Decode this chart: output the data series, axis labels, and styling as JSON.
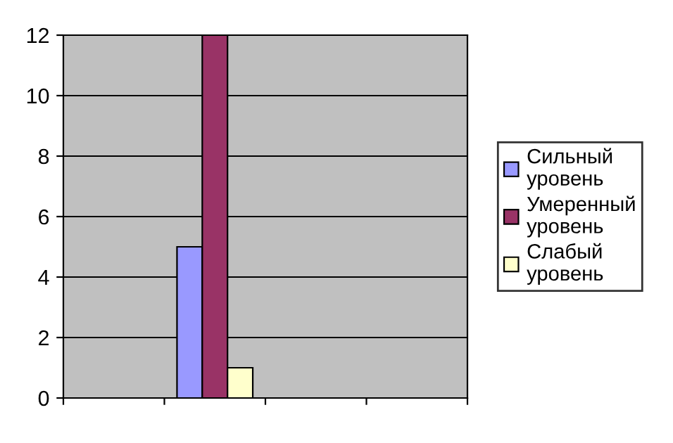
{
  "chart_data": {
    "type": "bar",
    "categories": [
      null,
      null,
      null,
      null
    ],
    "series": [
      {
        "name": "Сильный уровень",
        "color": "#9999ff",
        "values": [
          null,
          5,
          null,
          null
        ]
      },
      {
        "name": "Умеренный уровень",
        "color": "#993366",
        "values": [
          null,
          12,
          null,
          null
        ]
      },
      {
        "name": "Слабый уровень",
        "color": "#ffffcc",
        "values": [
          null,
          1,
          null,
          null
        ]
      }
    ],
    "ylim": [
      0,
      12
    ],
    "yticks": [
      0,
      2,
      4,
      6,
      8,
      10,
      12
    ],
    "grid": "y",
    "legend": "right"
  }
}
